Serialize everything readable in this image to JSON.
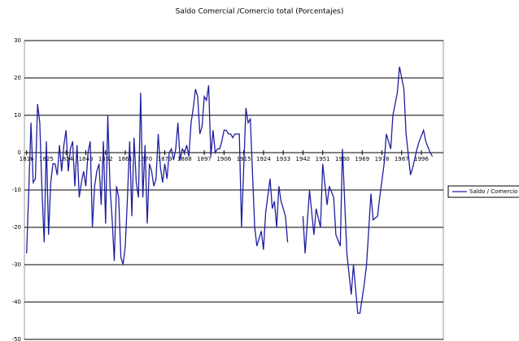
{
  "chart_data": {
    "type": "line",
    "title": "Saldo Comercial /Comercio total (Porcentajes)",
    "x": [
      1816,
      1817,
      1818,
      1819,
      1820,
      1821,
      1822,
      1823,
      1824,
      1825,
      1826,
      1827,
      1828,
      1829,
      1830,
      1831,
      1832,
      1833,
      1834,
      1835,
      1836,
      1837,
      1838,
      1839,
      1840,
      1841,
      1842,
      1843,
      1844,
      1845,
      1846,
      1847,
      1848,
      1849,
      1850,
      1851,
      1852,
      1853,
      1854,
      1855,
      1856,
      1857,
      1858,
      1859,
      1860,
      1861,
      1862,
      1863,
      1864,
      1865,
      1866,
      1867,
      1868,
      1869,
      1870,
      1871,
      1872,
      1873,
      1874,
      1875,
      1876,
      1877,
      1878,
      1879,
      1880,
      1881,
      1882,
      1883,
      1884,
      1885,
      1886,
      1887,
      1888,
      1889,
      1890,
      1891,
      1892,
      1893,
      1894,
      1895,
      1896,
      1897,
      1898,
      1899,
      1900,
      1901,
      1902,
      1903,
      1904,
      1905,
      1906,
      1907,
      1908,
      1909,
      1910,
      1911,
      1912,
      1913,
      1914,
      1916,
      1917,
      1918,
      1920,
      1921,
      1923,
      1924,
      1925,
      1927,
      1928,
      1929,
      1930,
      1931,
      1932,
      1934,
      1935,
      1938,
      1942,
      1943,
      1945,
      1947,
      1948,
      1950,
      1951,
      1953,
      1954,
      1956,
      1957,
      1959,
      1960,
      1962,
      1964,
      1965,
      1967,
      1968,
      1970,
      1971,
      1973,
      1974,
      1976,
      1977,
      1979,
      1980,
      1982,
      1983,
      1985,
      1986,
      1988,
      1989,
      1991,
      1992,
      1994,
      1995,
      1997,
      1998,
      2000,
      2001
    ],
    "series": [
      {
        "name": "Saldo / Comercio",
        "color": "#1f1fa0",
        "values": [
          -27,
          -10,
          8,
          -8,
          -7,
          13,
          8,
          -10,
          -24,
          3,
          -22,
          -8,
          -3,
          -3,
          -6,
          2,
          -5,
          2,
          6,
          -5,
          1,
          3,
          -9,
          2,
          -12,
          -8,
          -5,
          -9,
          0,
          3,
          -20,
          -9,
          -5,
          -3,
          -14,
          3,
          -19,
          10,
          -9,
          -18,
          -29,
          -9,
          -12,
          -28,
          -30,
          -25,
          -12,
          3,
          -17,
          4,
          -8,
          -12,
          16,
          -12,
          2,
          -19,
          -3,
          -5,
          -9,
          -7,
          5,
          -4,
          -8,
          -3,
          -7,
          0,
          1,
          -2,
          1,
          8,
          -2,
          1,
          0,
          2,
          -1,
          8,
          12,
          17,
          15,
          5,
          7,
          15,
          14,
          18,
          -1,
          6,
          0,
          1,
          1,
          3,
          6,
          6,
          5,
          5,
          4,
          5,
          5,
          5,
          -20,
          12,
          8,
          9,
          -20,
          -25,
          -21,
          -26,
          -16,
          -7,
          -15,
          -13,
          -20,
          -9,
          -13,
          -17,
          -24,
          null,
          -17,
          -27,
          -10,
          -22,
          -15,
          -20,
          -3,
          -14,
          -9,
          -12,
          -22,
          -25,
          1,
          -27,
          -38,
          -30,
          -43,
          -43,
          -35,
          -30,
          -11,
          -18,
          -17,
          -12,
          -3,
          5,
          1,
          10,
          16,
          23,
          17,
          5,
          -6,
          -4,
          1,
          3,
          6,
          3,
          0,
          -1
        ]
      }
    ],
    "xlim": [
      1815,
      2006
    ],
    "ylim": [
      -50,
      30
    ],
    "xticks": [
      1816,
      1825,
      1834,
      1843,
      1852,
      1861,
      1870,
      1879,
      1888,
      1897,
      1906,
      1915,
      1924,
      1933,
      1942,
      1951,
      1960,
      1969,
      1978,
      1987,
      1996
    ],
    "yticks": [
      -50,
      -40,
      -30,
      -20,
      -10,
      0,
      10,
      20,
      30
    ],
    "grid": true
  }
}
